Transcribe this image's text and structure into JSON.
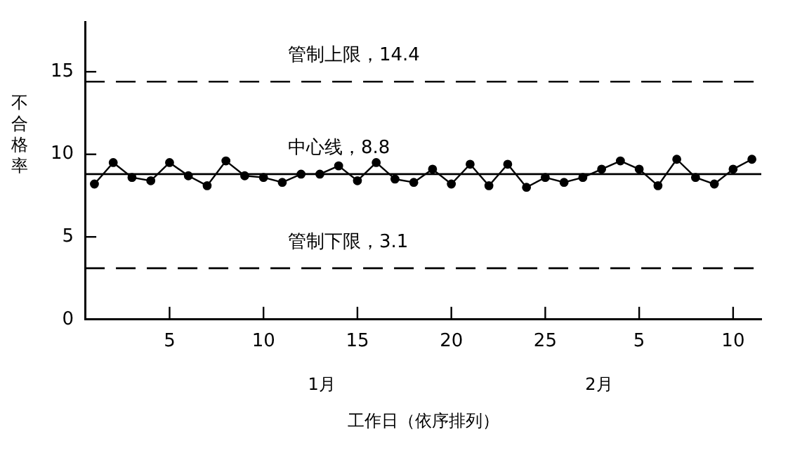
{
  "chart_data": {
    "type": "line",
    "xlabel": "工作日（依序排列）",
    "ylabel": "不合格率",
    "categories": [
      null,
      null,
      null,
      null,
      "5",
      null,
      null,
      null,
      null,
      "10",
      null,
      null,
      null,
      null,
      "15",
      null,
      null,
      null,
      null,
      "20",
      null,
      null,
      null,
      null,
      "25",
      null,
      null,
      null,
      null,
      "5",
      null,
      null,
      null,
      null,
      "10",
      null
    ],
    "series": [
      {
        "color": "#000000",
        "values": [
          8.2,
          9.5,
          8.6,
          8.4,
          9.5,
          8.7,
          8.1,
          9.6,
          8.7,
          8.6,
          8.3,
          8.8,
          8.8,
          9.3,
          8.4,
          9.5,
          8.5,
          8.3,
          9.1,
          8.2,
          9.4,
          8.1,
          9.4,
          8.0,
          8.6,
          8.3,
          8.6,
          9.1,
          9.6,
          9.1,
          8.1,
          9.7,
          8.6,
          8.2,
          9.1,
          9.7
        ]
      }
    ],
    "ylim": [
      0,
      18
    ],
    "yticks": [
      0,
      5,
      10,
      15
    ],
    "ref_lines": [
      {
        "axis": "y",
        "value": 14.4,
        "label": "管制上限，14.4",
        "color": "#000000",
        "line_style": "dashed"
      },
      {
        "axis": "y",
        "value": 8.8,
        "label": "中心线，8.8",
        "color": "#000000",
        "line_style": "solid"
      },
      {
        "axis": "y",
        "value": 3.1,
        "label": "管制下限，3.1",
        "color": "#000000",
        "line_style": "dashed"
      }
    ],
    "annotations": [
      "1月",
      "2月"
    ],
    "grid": false,
    "legend": false,
    "marker": "circle",
    "line_style": "solid"
  }
}
